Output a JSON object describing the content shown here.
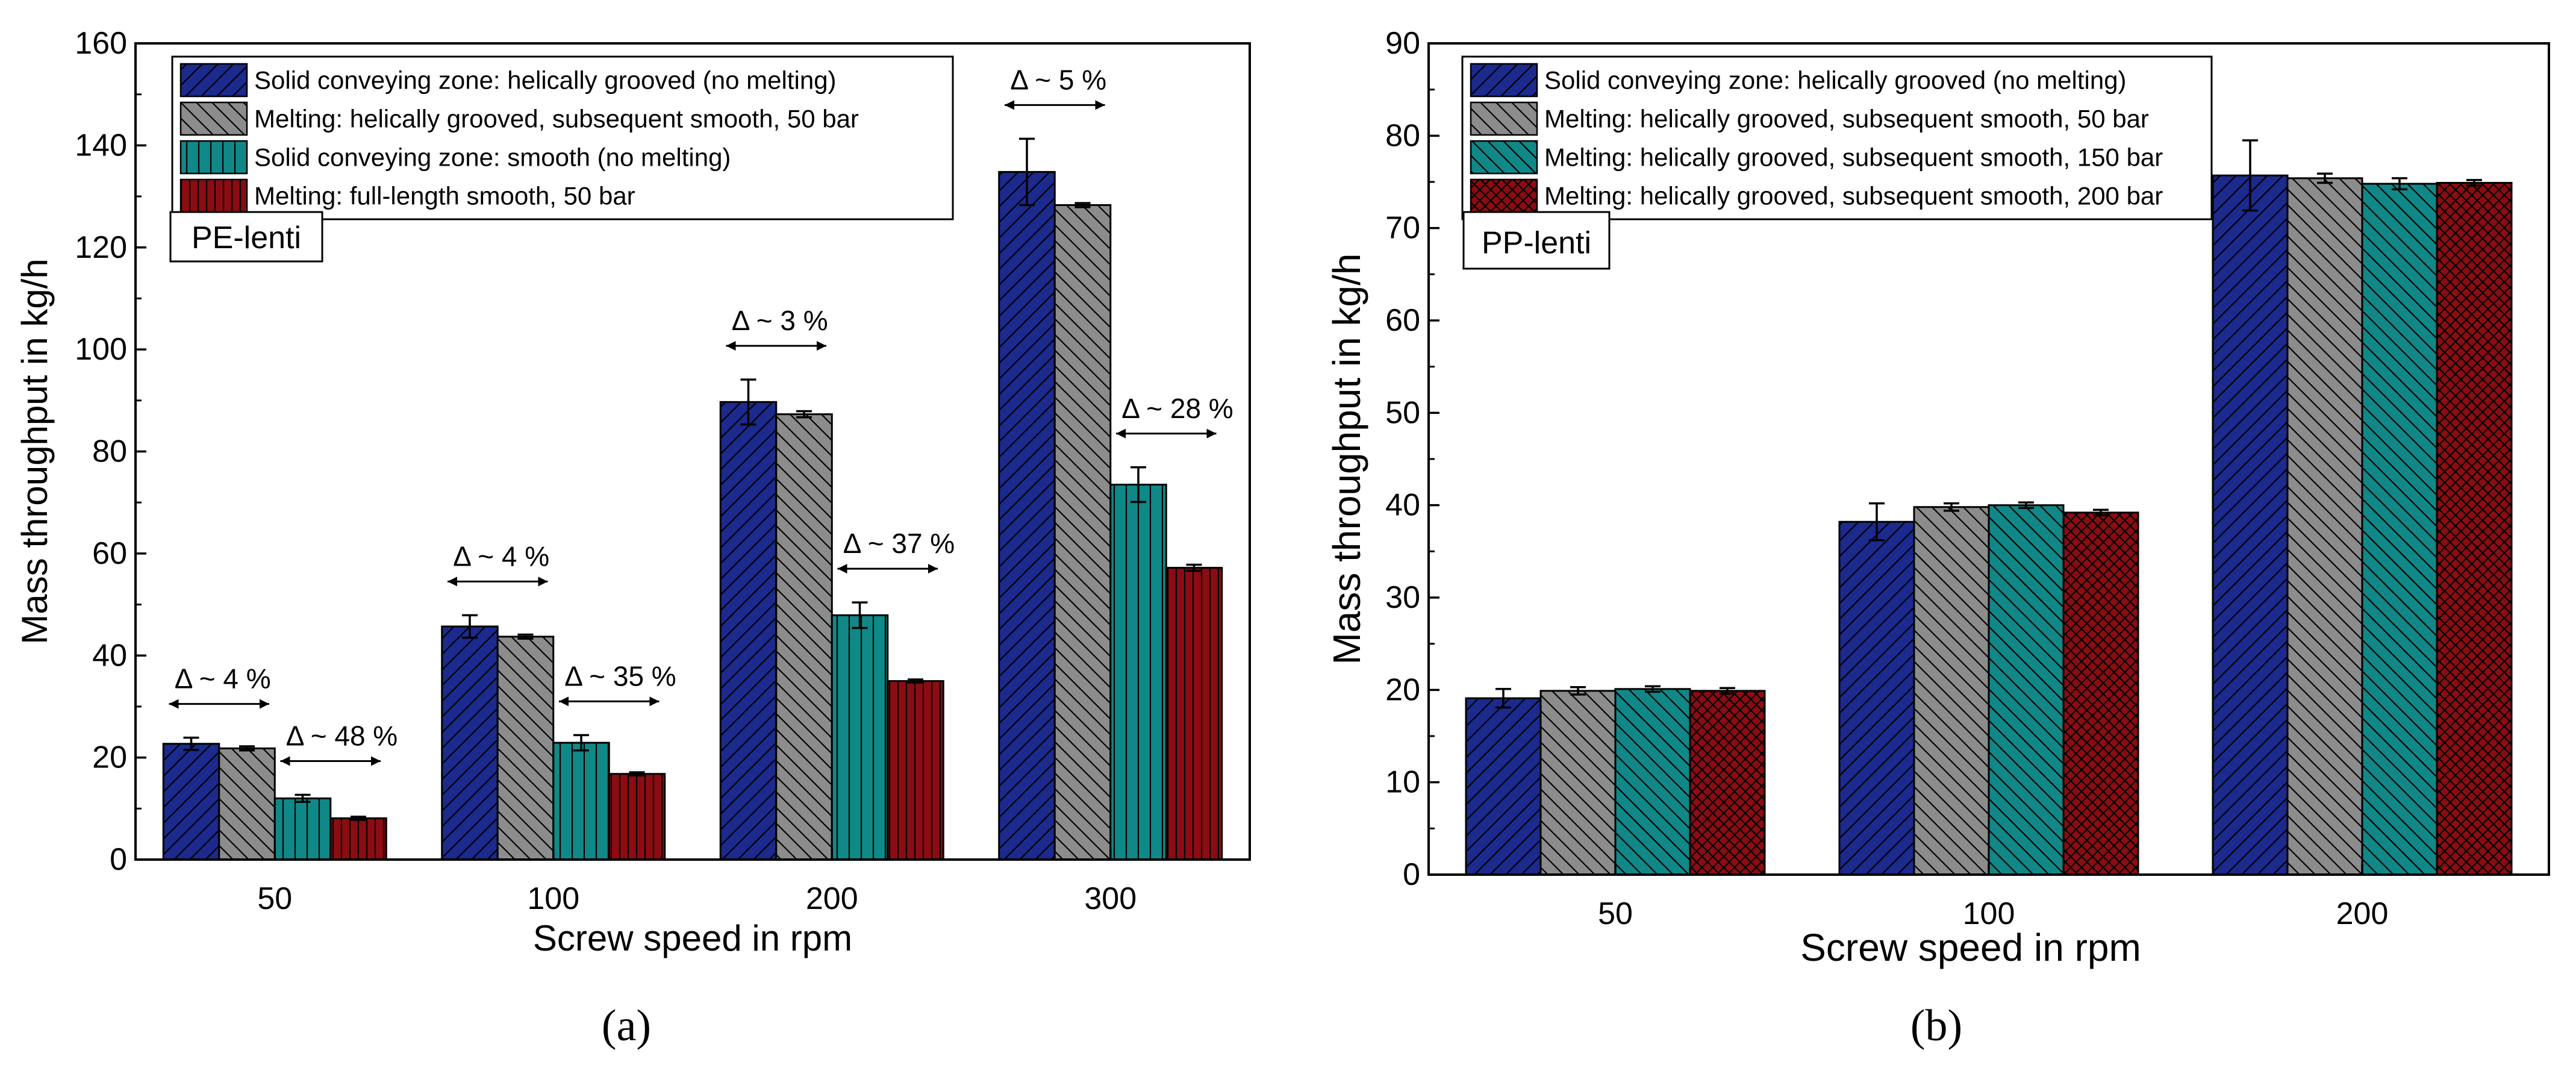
{
  "chart_data": [
    {
      "panel": "a",
      "type": "bar",
      "caption_label": "(a)",
      "panel_label": "PE-lenti",
      "xlabel": "Screw speed in rpm",
      "ylabel": "Mass throughput in kg/h",
      "categories": [
        "50",
        "100",
        "200",
        "300"
      ],
      "ylim": [
        0,
        160
      ],
      "yticks": [
        0,
        20,
        40,
        60,
        80,
        100,
        120,
        140,
        160
      ],
      "legend_position": "top-left",
      "series": [
        {
          "name": "Solid conveying zone: helically grooved (no melting)",
          "color": "#1b2a8c",
          "pattern": "diag-fwd",
          "values": [
            22.7,
            45.7,
            89.7,
            134.8
          ],
          "errors": [
            1.2,
            2.2,
            4.4,
            6.5
          ]
        },
        {
          "name": "Melting: helically grooved, subsequent smooth, 50 bar",
          "color": "#8c8c8c",
          "pattern": "diag-back",
          "values": [
            21.8,
            43.7,
            87.3,
            128.3
          ],
          "errors": [
            0.4,
            0.4,
            0.6,
            0.4
          ]
        },
        {
          "name": "Solid conveying zone: smooth (no melting)",
          "color": "#108887",
          "pattern": "vertical",
          "values": [
            12.0,
            22.9,
            47.9,
            73.5
          ],
          "errors": [
            0.7,
            1.5,
            2.5,
            3.4
          ]
        },
        {
          "name": "Melting: full-length smooth, 50 bar",
          "color": "#8b0c12",
          "pattern": "vertical-dense",
          "values": [
            8.1,
            16.8,
            35.0,
            57.2
          ],
          "errors": [
            0.3,
            0.3,
            0.3,
            0.6
          ]
        }
      ],
      "annotations": [
        {
          "text": "Δ ~ 4 %",
          "category": 0,
          "pair": "left"
        },
        {
          "text": "Δ ~ 48 %",
          "category": 0,
          "pair": "right"
        },
        {
          "text": "Δ ~ 4 %",
          "category": 1,
          "pair": "left"
        },
        {
          "text": "Δ ~ 35 %",
          "category": 1,
          "pair": "right"
        },
        {
          "text": "Δ ~ 3 %",
          "category": 2,
          "pair": "left"
        },
        {
          "text": "Δ ~ 37 %",
          "category": 2,
          "pair": "right"
        },
        {
          "text": "Δ ~ 5 %",
          "category": 3,
          "pair": "left"
        },
        {
          "text": "Δ ~ 28 %",
          "category": 3,
          "pair": "right"
        }
      ]
    },
    {
      "panel": "b",
      "type": "bar",
      "caption_label": "(b)",
      "panel_label": "PP-lenti",
      "xlabel": "Screw speed in rpm",
      "ylabel": "Mass throughput in kg/h",
      "categories": [
        "50",
        "100",
        "200"
      ],
      "ylim": [
        0,
        90
      ],
      "yticks": [
        0,
        10,
        20,
        30,
        40,
        50,
        60,
        70,
        80,
        90
      ],
      "legend_position": "top-left",
      "series": [
        {
          "name": "Solid conveying zone: helically grooved (no melting)",
          "color": "#1b2a8c",
          "pattern": "diag-fwd",
          "values": [
            19.1,
            38.2,
            75.7
          ],
          "errors": [
            1.0,
            2.0,
            3.8
          ]
        },
        {
          "name": "Melting: helically grooved, subsequent smooth,   50 bar",
          "color": "#8c8c8c",
          "pattern": "diag-back",
          "values": [
            19.9,
            39.8,
            75.4
          ],
          "errors": [
            0.4,
            0.4,
            0.5
          ]
        },
        {
          "name": "Melting: helically grooved, subsequent smooth, 150 bar",
          "color": "#108887",
          "pattern": "diag-back",
          "values": [
            20.1,
            40.0,
            74.8
          ],
          "errors": [
            0.3,
            0.3,
            0.6
          ]
        },
        {
          "name": "Melting: helically grooved, subsequent smooth, 200 bar",
          "color": "#8b0c12",
          "pattern": "diag-cross",
          "values": [
            19.9,
            39.2,
            74.9
          ],
          "errors": [
            0.3,
            0.3,
            0.3
          ]
        }
      ]
    }
  ]
}
